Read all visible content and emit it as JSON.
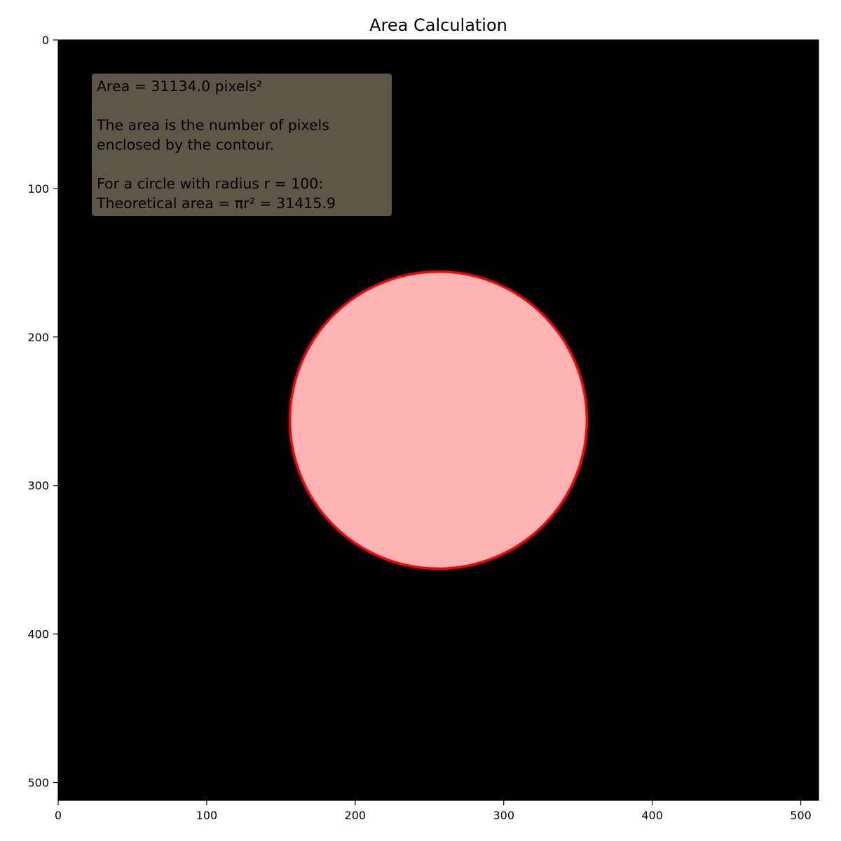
{
  "chart_data": {
    "type": "image",
    "title": "Area Calculation",
    "xlabel": "",
    "ylabel": "",
    "image_size": [
      512,
      512
    ],
    "xlim": [
      0,
      512
    ],
    "ylim": [
      512,
      0
    ],
    "x_ticks": [
      0,
      100,
      200,
      300,
      400,
      500
    ],
    "y_ticks": [
      0,
      100,
      200,
      300,
      400,
      500
    ],
    "background_color": "#000000",
    "contour": {
      "shape": "circle",
      "center": [
        256,
        256
      ],
      "radius": 100,
      "edge_color": "#ff0000",
      "fill_color": "#ffb3b3"
    },
    "annotation": {
      "lines": [
        "Area = 31134.0 pixels²",
        "",
        "The area is the number of pixels",
        "enclosed by the contour.",
        "",
        "For a circle with radius r = 100:",
        "Theoretical area = πr² = 31415.9"
      ],
      "box_color": "#5e5646",
      "anchor_data": [
        23,
        4
      ]
    }
  }
}
